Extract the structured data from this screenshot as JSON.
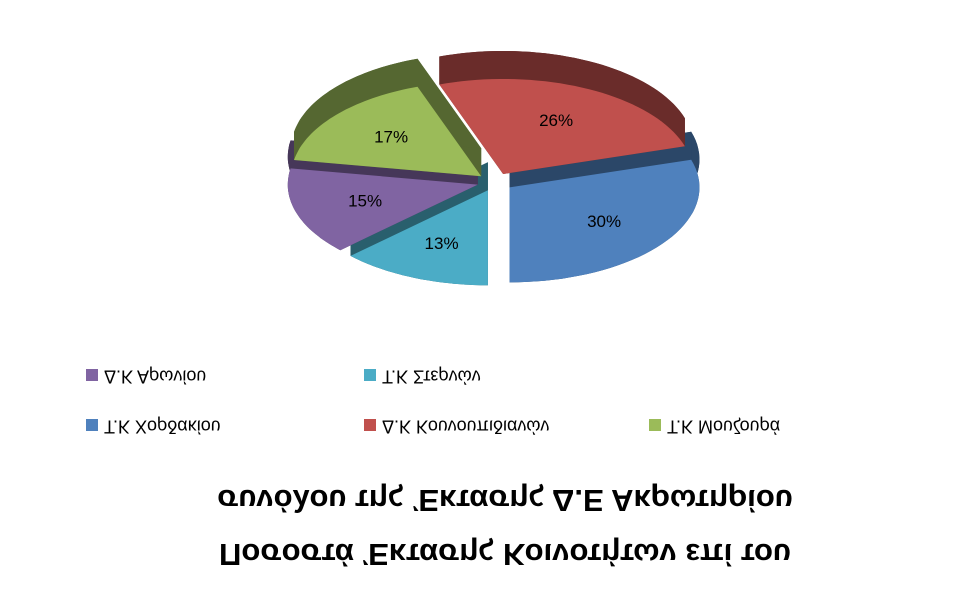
{
  "chart_data": {
    "type": "pie3d",
    "title": [
      "Ποσοστά Έκτασης Κοινοτήτων επί του",
      "συνόλου της Έκτασης Δ.Ε Ακρωτηρίου"
    ],
    "categories": [
      "Τ.Κ Χορδακίου",
      "Δ.Κ Κουνουπιδιανών",
      "Τ.Κ Μουζουρά",
      "Δ.Κ Αρωνίου",
      "Τ.Κ Στερνών"
    ],
    "values": [
      30,
      26,
      17,
      15,
      13
    ],
    "value_labels": [
      "30%",
      "26%",
      "17%",
      "15%",
      "13%"
    ],
    "colors": [
      "#4f81bd",
      "#c0504d",
      "#9bbb59",
      "#8064a2",
      "#4bacc6"
    ]
  }
}
